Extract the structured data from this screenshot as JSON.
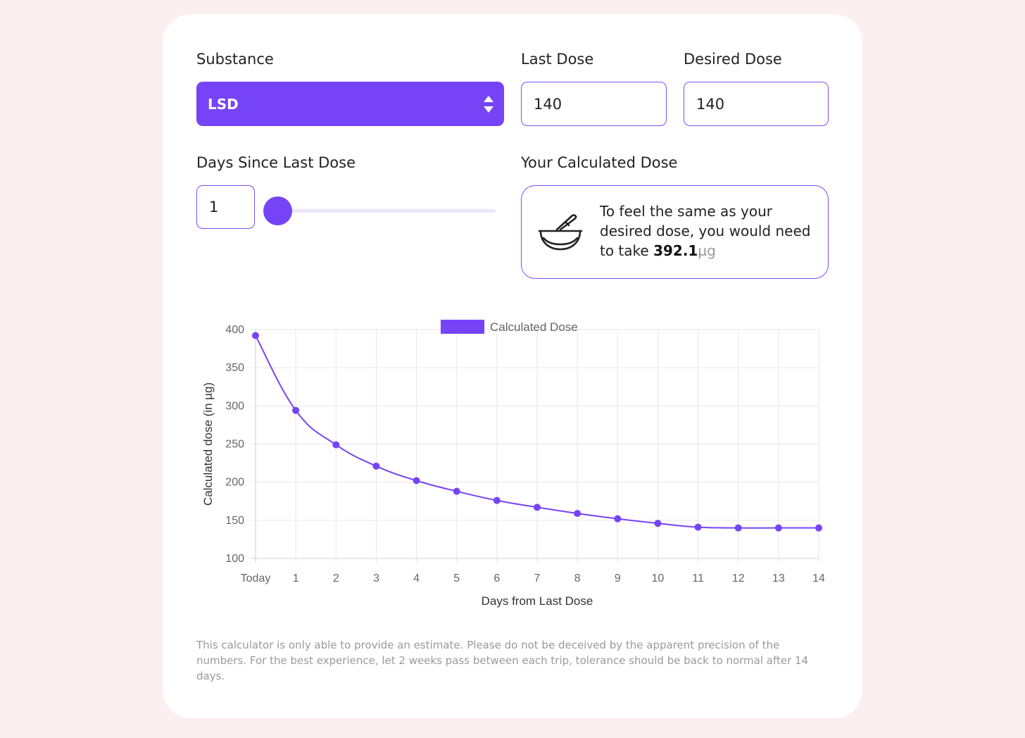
{
  "form": {
    "substance_label": "Substance",
    "substance_value": "LSD",
    "last_dose_label": "Last Dose",
    "last_dose_value": "140",
    "desired_dose_label": "Desired Dose",
    "desired_dose_value": "140",
    "days_since_label": "Days Since Last Dose",
    "days_since_value": "1",
    "days_slider": {
      "value": 1,
      "min": 1,
      "max": 14
    }
  },
  "result": {
    "label": "Your Calculated Dose",
    "text_prefix": "To feel the same as your desired dose, you would need to take ",
    "value": "392.1",
    "unit": "µg",
    "icon": "mortar-pestle-icon"
  },
  "colors": {
    "accent": "#7644f6",
    "background": "#fcefef",
    "card": "#ffffff"
  },
  "chart_data": {
    "type": "line",
    "legend": "Calculated Dose",
    "legend_position": "top-center",
    "xlabel": "Days from Last Dose",
    "ylabel": "Calculated dose (in µg)",
    "categories": [
      "Today",
      "1",
      "2",
      "3",
      "4",
      "5",
      "6",
      "7",
      "8",
      "9",
      "10",
      "11",
      "12",
      "13",
      "14"
    ],
    "values": [
      392.1,
      294,
      249,
      221,
      202,
      188,
      176,
      167,
      159,
      152,
      146,
      141,
      140,
      140,
      140
    ],
    "ylim": [
      100,
      400
    ],
    "yticks": [
      "100",
      "150",
      "200",
      "250",
      "300",
      "350",
      "400"
    ],
    "grid": true
  },
  "disclaimer": "This calculator is only able to provide an estimate. Please do not be deceived by the apparent precision of the numbers. For the best experience, let 2 weeks pass between each trip, tolerance should be back to normal after 14 days."
}
